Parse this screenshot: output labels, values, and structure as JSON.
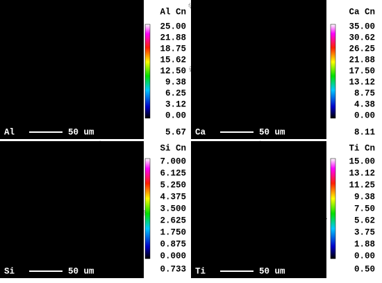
{
  "panels": [
    {
      "element": "Al",
      "scale_bar": "50 um",
      "colorbar_title": "Al Cn",
      "ticks": [
        "25.00",
        "21.88",
        "18.75",
        "15.62",
        "12.50",
        "9.38",
        "6.25",
        "3.12",
        "0.00"
      ],
      "mean": "5.67"
    },
    {
      "element": "Ca",
      "scale_bar": "50 um",
      "colorbar_title": "Ca Cn",
      "ticks": [
        "35.00",
        "30.62",
        "26.25",
        "21.88",
        "17.50",
        "13.12",
        "8.75",
        "4.38",
        "0.00"
      ],
      "mean": "8.11"
    },
    {
      "element": "Si",
      "scale_bar": "50 um",
      "colorbar_title": "Si Cn",
      "ticks": [
        "7.000",
        "6.125",
        "5.250",
        "4.375",
        "3.500",
        "2.625",
        "1.750",
        "0.875",
        "0.000"
      ],
      "mean": "0.733"
    },
    {
      "element": "Ti",
      "scale_bar": "50 um",
      "colorbar_title": "Ti Cn",
      "ticks": [
        "15.00",
        "13.12",
        "11.25",
        "9.38",
        "7.50",
        "5.62",
        "3.75",
        "1.88",
        "0.00"
      ],
      "mean": "0.50"
    }
  ]
}
